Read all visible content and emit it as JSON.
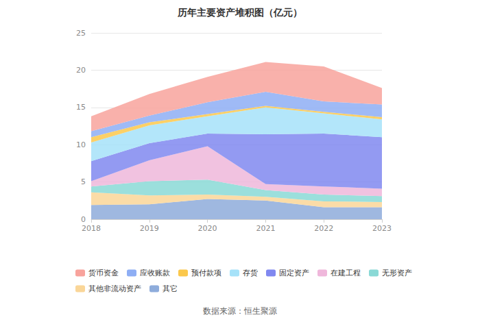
{
  "chart_data": {
    "type": "area",
    "title": "历年主要资产堆积图（亿元）",
    "annotations": [
      "数据来源：恒生聚源"
    ],
    "categories": [
      "2018",
      "2019",
      "2020",
      "2021",
      "2022",
      "2023"
    ],
    "stacked": true,
    "grid": true,
    "legend": "bottom",
    "ylim": [
      0,
      25
    ],
    "yticks": [
      0,
      5,
      10,
      15,
      20,
      25
    ],
    "series": [
      {
        "name": "货币资金",
        "color": "#f8a39c",
        "values": [
          2.0,
          2.9,
          3.4,
          4.0,
          4.7,
          2.2
        ]
      },
      {
        "name": "应收账款",
        "color": "#8eaef4",
        "values": [
          0.8,
          0.9,
          1.6,
          1.9,
          1.4,
          1.7
        ]
      },
      {
        "name": "预付款项",
        "color": "#fbc84c",
        "values": [
          0.7,
          0.4,
          0.3,
          0.2,
          0.2,
          0.3
        ]
      },
      {
        "name": "存货",
        "color": "#a6e2f9",
        "values": [
          2.5,
          2.4,
          2.3,
          3.6,
          2.7,
          2.4
        ]
      },
      {
        "name": "固定资产",
        "color": "#8088f0",
        "values": [
          2.7,
          2.3,
          1.7,
          6.7,
          7.1,
          6.9
        ]
      },
      {
        "name": "在建工程",
        "color": "#efb7db",
        "values": [
          0.7,
          2.8,
          4.5,
          0.8,
          1.1,
          1.0
        ]
      },
      {
        "name": "无形资产",
        "color": "#8ad9d6",
        "values": [
          0.8,
          1.9,
          2.0,
          0.9,
          0.9,
          0.8
        ]
      },
      {
        "name": "其他非流动资产",
        "color": "#fad698",
        "values": [
          1.7,
          1.2,
          0.6,
          0.5,
          0.8,
          0.7
        ]
      },
      {
        "name": "其它",
        "color": "#8eacdb",
        "values": [
          1.9,
          2.0,
          2.7,
          2.5,
          1.6,
          1.6
        ]
      }
    ]
  }
}
